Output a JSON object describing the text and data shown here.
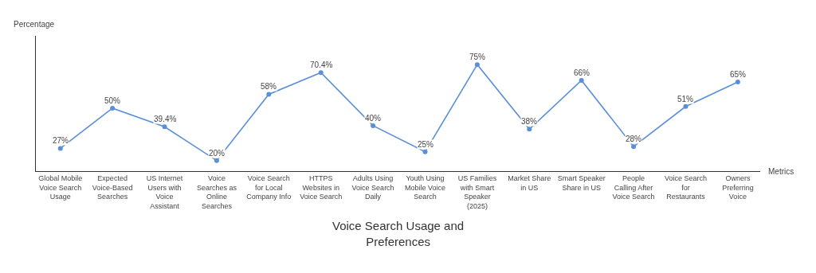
{
  "chart_data": {
    "type": "line",
    "title": "Voice Search Usage and Preferences",
    "xlabel": "Metrics",
    "ylabel": "Percentage",
    "categories": [
      "Global Mobile Voice Search Usage",
      "Expected Voice-Based Searches",
      "US Internet Users with Voice Assistant",
      "Voice Searches as Online Searches",
      "Voice Search for Local Company Info",
      "HTTPS Websites in Voice Search",
      "Adults Using Voice Search Daily",
      "Youth Using Mobile Voice Search",
      "US Families with Smart Speaker (2025)",
      "Market Share in US",
      "Smart Speaker Share in US",
      "People Calling After Voice Search",
      "Voice Search for Restaurants",
      "Owners Preferring Voice"
    ],
    "series": [
      {
        "color": "#5b8fd6",
        "values": [
          27,
          50,
          39.4,
          20,
          58,
          70.4,
          40,
          25,
          75,
          38,
          66,
          28,
          51,
          65
        ],
        "value_labels": [
          "27%",
          "50%",
          "39.4%",
          "20%",
          "58%",
          "70.4%",
          "40%",
          "25%",
          "75%",
          "38%",
          "66%",
          "28%",
          "51%",
          "65%"
        ]
      }
    ],
    "marker": "circle",
    "line_style": "solid"
  }
}
